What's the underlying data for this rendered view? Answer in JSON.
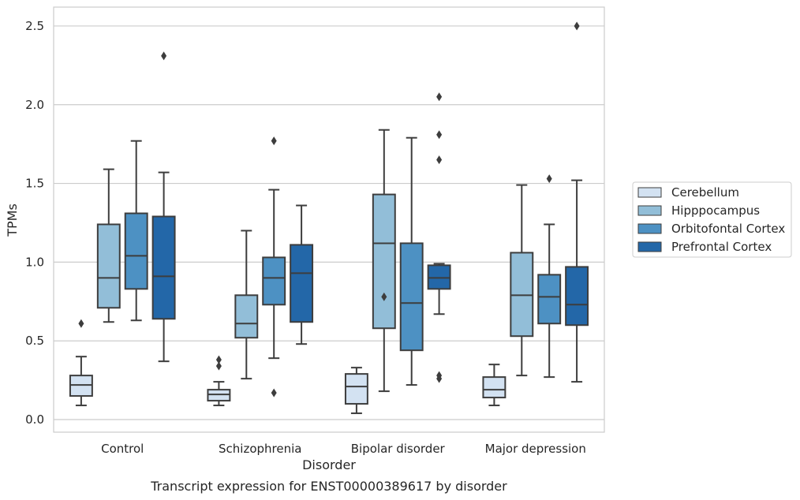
{
  "chart_data": {
    "type": "box",
    "xlabel": "Disorder",
    "ylabel": "TPMs",
    "caption": "Transcript expression for ENST00000389617 by disorder",
    "ylim": [
      -0.08,
      2.62
    ],
    "yticks": [
      "0.0",
      "0.5",
      "1.0",
      "1.5",
      "2.0",
      "2.5"
    ],
    "grid": "horizontal",
    "legend_position": "right",
    "categories": [
      "Control",
      "Schizophrenia",
      "Bipolar disorder",
      "Major depression"
    ],
    "series": [
      {
        "name": "Cerebellum",
        "color": "#d3e2f2",
        "boxes": [
          {
            "whisker_low": 0.09,
            "q1": 0.15,
            "median": 0.22,
            "q3": 0.28,
            "whisker_high": 0.4,
            "outliers": [
              0.61
            ]
          },
          {
            "whisker_low": 0.09,
            "q1": 0.12,
            "median": 0.16,
            "q3": 0.19,
            "whisker_high": 0.24,
            "outliers": [
              0.34,
              0.38
            ]
          },
          {
            "whisker_low": 0.04,
            "q1": 0.1,
            "median": 0.21,
            "q3": 0.29,
            "whisker_high": 0.33,
            "outliers": []
          },
          {
            "whisker_low": 0.09,
            "q1": 0.14,
            "median": 0.19,
            "q3": 0.27,
            "whisker_high": 0.35,
            "outliers": []
          }
        ]
      },
      {
        "name": "Hipppocampus",
        "color": "#92bed8",
        "boxes": [
          {
            "whisker_low": 0.62,
            "q1": 0.71,
            "median": 0.9,
            "q3": 1.24,
            "whisker_high": 1.59,
            "outliers": []
          },
          {
            "whisker_low": 0.26,
            "q1": 0.52,
            "median": 0.61,
            "q3": 0.79,
            "whisker_high": 1.2,
            "outliers": []
          },
          {
            "whisker_low": 0.18,
            "q1": 0.58,
            "median": 1.12,
            "q3": 1.43,
            "whisker_high": 1.84,
            "outliers": [
              0.78
            ]
          },
          {
            "whisker_low": 0.28,
            "q1": 0.53,
            "median": 0.79,
            "q3": 1.06,
            "whisker_high": 1.49,
            "outliers": []
          }
        ]
      },
      {
        "name": "Orbitofontal Cortex",
        "color": "#4d91c3",
        "boxes": [
          {
            "whisker_low": 0.63,
            "q1": 0.83,
            "median": 1.04,
            "q3": 1.31,
            "whisker_high": 1.77,
            "outliers": []
          },
          {
            "whisker_low": 0.39,
            "q1": 0.73,
            "median": 0.9,
            "q3": 1.03,
            "whisker_high": 1.46,
            "outliers": [
              1.77,
              0.17
            ]
          },
          {
            "whisker_low": 0.22,
            "q1": 0.44,
            "median": 0.74,
            "q3": 1.12,
            "whisker_high": 1.79,
            "outliers": []
          },
          {
            "whisker_low": 0.27,
            "q1": 0.61,
            "median": 0.78,
            "q3": 0.92,
            "whisker_high": 1.24,
            "outliers": [
              1.53
            ]
          }
        ]
      },
      {
        "name": "Prefrontal Cortex",
        "color": "#2367a8",
        "boxes": [
          {
            "whisker_low": 0.37,
            "q1": 0.64,
            "median": 0.91,
            "q3": 1.29,
            "whisker_high": 1.57,
            "outliers": [
              2.31
            ]
          },
          {
            "whisker_low": 0.48,
            "q1": 0.62,
            "median": 0.93,
            "q3": 1.11,
            "whisker_high": 1.36,
            "outliers": []
          },
          {
            "whisker_low": 0.67,
            "q1": 0.83,
            "median": 0.9,
            "q3": 0.98,
            "whisker_high": 0.99,
            "outliers": [
              2.05,
              1.81,
              1.65,
              0.28,
              0.26
            ]
          },
          {
            "whisker_low": 0.24,
            "q1": 0.6,
            "median": 0.73,
            "q3": 0.97,
            "whisker_high": 1.52,
            "outliers": [
              2.5
            ]
          }
        ]
      }
    ]
  }
}
